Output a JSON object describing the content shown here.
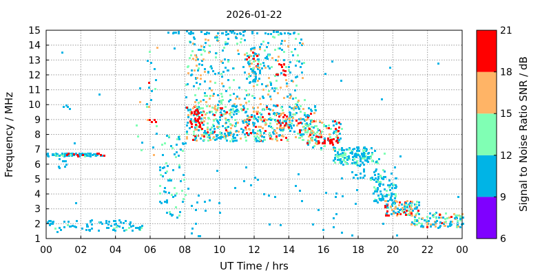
{
  "chart_data": {
    "type": "heatmap",
    "title": "2026-01-22",
    "xlabel": "UT Time / hrs",
    "ylabel": "Frequency / MHz",
    "xlim": [
      0,
      24
    ],
    "ylim": [
      1,
      15
    ],
    "xticks": [
      "00",
      "02",
      "04",
      "06",
      "08",
      "10",
      "12",
      "14",
      "16",
      "18",
      "20",
      "22",
      "00"
    ],
    "yticks": [
      "1",
      "2",
      "3",
      "4",
      "5",
      "6",
      "7",
      "8",
      "9",
      "10",
      "11",
      "12",
      "13",
      "14",
      "15"
    ],
    "grid": true,
    "colorbar": {
      "label": "Signal to Noise Ratio SNR / dB",
      "range": [
        6,
        21
      ],
      "ticks": [
        "6",
        "9",
        "12",
        "15",
        "18",
        "21"
      ],
      "bands": [
        {
          "from": 6,
          "to": 9,
          "color": "#7f00ff"
        },
        {
          "from": 9,
          "to": 12,
          "color": "#00b4e6"
        },
        {
          "from": 12,
          "to": 15,
          "color": "#80ffb4"
        },
        {
          "from": 15,
          "to": 18,
          "color": "#ffb466"
        },
        {
          "from": 18,
          "to": 21,
          "color": "#ff0000"
        }
      ]
    },
    "series": [
      {
        "x_range": [
          0.0,
          3.2
        ],
        "y_range": [
          6.6,
          6.8
        ],
        "n": 90,
        "snr_range": [
          9,
          13
        ]
      },
      {
        "x_range": [
          0.8,
          3.5
        ],
        "y_range": [
          6.6,
          6.8
        ],
        "n": 10,
        "snr_range": [
          18,
          21
        ]
      },
      {
        "x_range": [
          0.0,
          5.5
        ],
        "y_range": [
          1.6,
          2.3
        ],
        "n": 80,
        "snr_range": [
          9,
          13
        ]
      },
      {
        "x_range": [
          0.0,
          1.2
        ],
        "y_range": [
          5.8,
          6.4
        ],
        "n": 8,
        "snr_range": [
          9,
          11
        ]
      },
      {
        "x_range": [
          0.9,
          1.2
        ],
        "y_range": [
          9.8,
          10.0
        ],
        "n": 3,
        "snr_range": [
          9,
          11
        ]
      },
      {
        "x_range": [
          5.0,
          6.4
        ],
        "y_range": [
          6.5,
          14.0
        ],
        "n": 25,
        "snr_range": [
          9,
          20
        ]
      },
      {
        "x_range": [
          5.9,
          6.3
        ],
        "y_range": [
          8.8,
          9.1
        ],
        "n": 4,
        "snr_range": [
          18,
          21
        ]
      },
      {
        "x_range": [
          6.5,
          8.0
        ],
        "y_range": [
          2.5,
          8.0
        ],
        "n": 70,
        "snr_range": [
          9,
          15
        ]
      },
      {
        "x_range": [
          6.8,
          14.5
        ],
        "y_range": [
          14.8,
          15.0
        ],
        "n": 50,
        "snr_range": [
          9,
          11
        ]
      },
      {
        "x_range": [
          8.0,
          15.5
        ],
        "y_range": [
          7.6,
          10.0
        ],
        "n": 550,
        "snr_range": [
          9,
          20
        ]
      },
      {
        "x_range": [
          8.0,
          15.0
        ],
        "y_range": [
          9.5,
          14.8
        ],
        "n": 320,
        "snr_range": [
          9,
          18
        ]
      },
      {
        "x_range": [
          8.2,
          9.0
        ],
        "y_range": [
          8.5,
          9.8
        ],
        "n": 25,
        "snr_range": [
          18,
          21
        ]
      },
      {
        "x_range": [
          11.5,
          12.3
        ],
        "y_range": [
          11.5,
          14.0
        ],
        "n": 55,
        "snr_range": [
          9,
          21
        ]
      },
      {
        "x_range": [
          13.2,
          14.0
        ],
        "y_range": [
          8.5,
          9.5
        ],
        "n": 20,
        "snr_range": [
          15,
          21
        ]
      },
      {
        "x_range": [
          13.2,
          13.8
        ],
        "y_range": [
          12.0,
          12.8
        ],
        "n": 10,
        "snr_range": [
          18,
          21
        ]
      },
      {
        "x_range": [
          15.0,
          17.0
        ],
        "y_range": [
          7.0,
          9.0
        ],
        "n": 110,
        "snr_range": [
          9,
          21
        ]
      },
      {
        "x_range": [
          15.5,
          16.8
        ],
        "y_range": [
          7.4,
          8.0
        ],
        "n": 20,
        "snr_range": [
          18,
          21
        ]
      },
      {
        "x_range": [
          16.5,
          18.8
        ],
        "y_range": [
          6.0,
          7.2
        ],
        "n": 120,
        "snr_range": [
          9,
          15
        ]
      },
      {
        "x_range": [
          17.5,
          19.5
        ],
        "y_range": [
          5.0,
          7.0
        ],
        "n": 55,
        "snr_range": [
          9,
          13
        ]
      },
      {
        "x_range": [
          18.8,
          20.2
        ],
        "y_range": [
          3.5,
          5.2
        ],
        "n": 80,
        "snr_range": [
          9,
          14
        ]
      },
      {
        "x_range": [
          19.5,
          21.5
        ],
        "y_range": [
          2.6,
          3.6
        ],
        "n": 110,
        "snr_range": [
          9,
          21
        ]
      },
      {
        "x_range": [
          21.0,
          24.0
        ],
        "y_range": [
          1.8,
          2.8
        ],
        "n": 110,
        "snr_range": [
          9,
          19
        ]
      },
      {
        "x_range": [
          8.0,
          18.0
        ],
        "y_range": [
          1.2,
          6.0
        ],
        "n": 40,
        "snr_range": [
          9,
          11
        ]
      },
      {
        "x_range": [
          0.0,
          24.0
        ],
        "y_range": [
          1.0,
          15.0
        ],
        "n": 30,
        "snr_range": [
          9,
          11
        ]
      }
    ]
  }
}
